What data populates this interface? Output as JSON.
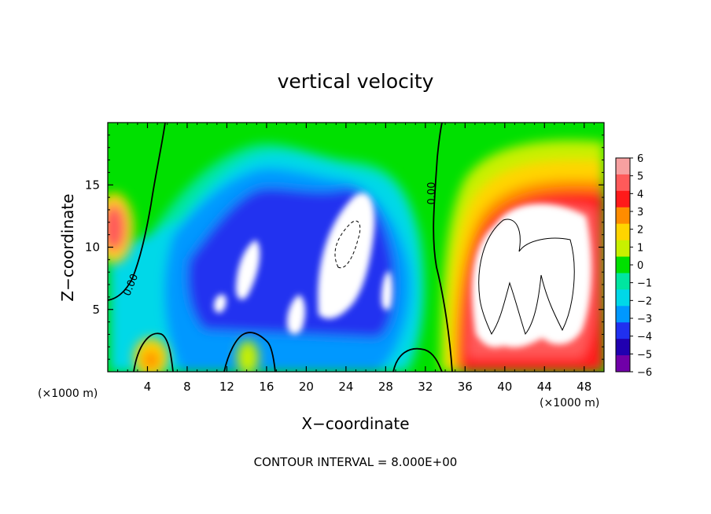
{
  "chart_data": {
    "type": "heatmap",
    "title": "vertical velocity",
    "xlabel": "X−coordinate",
    "ylabel": "Z−coordinate",
    "x_unit": "(×1000 m)",
    "x_unit_right": "(×1000 m)",
    "footer": "CONTOUR INTERVAL = 8.000E+00",
    "xlim": [
      0,
      50
    ],
    "ylim": [
      0,
      20
    ],
    "x_ticks": [
      4,
      8,
      12,
      16,
      20,
      24,
      28,
      32,
      36,
      40,
      44,
      48
    ],
    "x_tick_labels": [
      "4",
      "8",
      "12",
      "16",
      "20",
      "24",
      "28",
      "32",
      "36",
      "40",
      "44",
      "48"
    ],
    "y_ticks": [
      5,
      10,
      15
    ],
    "y_tick_labels": [
      "5",
      "10",
      "15"
    ],
    "colorbar": {
      "levels": [
        6,
        5,
        4,
        3,
        2,
        1,
        0,
        -1,
        -2,
        -3,
        -4,
        -5,
        -6
      ],
      "labels": [
        "6",
        "5",
        "4",
        "3",
        "2",
        "1",
        "0",
        "−1",
        "−2",
        "−3",
        "−4",
        "−5",
        "−6"
      ],
      "colors": [
        "#f7a0a0",
        "#ff5a5a",
        "#ff1a1a",
        "#ff8c00",
        "#ffd400",
        "#c8f000",
        "#00e000",
        "#00e6a0",
        "#00d8e8",
        "#0098ff",
        "#2030f0",
        "#2000b0",
        "#7000a8"
      ]
    },
    "contour_labels": [
      {
        "text": "0.00",
        "x": 2.4,
        "z": 6.8,
        "rotate": -68
      },
      {
        "text": "0.00",
        "x": 33.0,
        "z": 14.2,
        "rotate": -90
      }
    ],
    "fields": {
      "green_base": "#00e000",
      "blue_region": "#2030f0",
      "red_region": "#ff1a1a",
      "saturated": "#ffffff"
    }
  }
}
